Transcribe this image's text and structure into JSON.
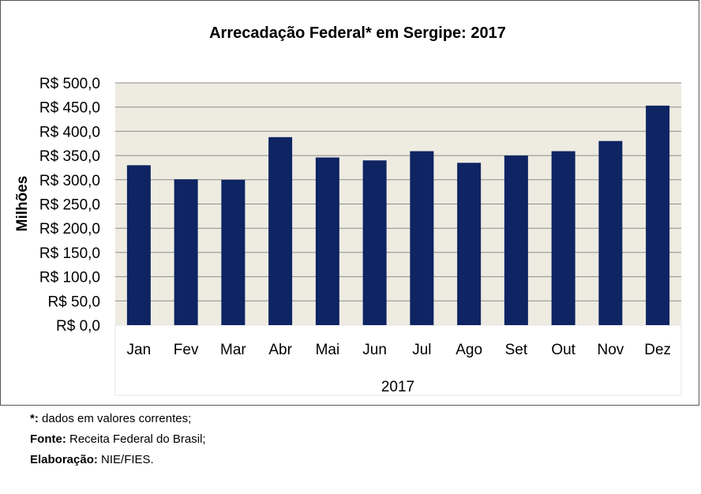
{
  "chart_data": {
    "type": "bar",
    "title": "Arrecadação Federal* em Sergipe: 2017",
    "ylabel": "Milhões",
    "xlabel": "2017",
    "categories": [
      "Jan",
      "Fev",
      "Mar",
      "Abr",
      "Mai",
      "Jun",
      "Jul",
      "Ago",
      "Set",
      "Out",
      "Nov",
      "Dez"
    ],
    "values": [
      330,
      301,
      300,
      388,
      346,
      340,
      359,
      335,
      350,
      359,
      380,
      453
    ],
    "ylim": [
      0,
      500
    ],
    "yticks": [
      0,
      50,
      100,
      150,
      200,
      250,
      300,
      350,
      400,
      450,
      500
    ],
    "ytick_labels": [
      "R$ 0,0",
      "R$ 50,0",
      "R$ 100,0",
      "R$ 150,0",
      "R$ 200,0",
      "R$ 250,0",
      "R$ 300,0",
      "R$ 350,0",
      "R$ 400,0",
      "R$ 450,0",
      "R$ 500,0"
    ],
    "grid": true,
    "colors": {
      "bar": "#0e2463",
      "plot_bg": "#eeece1",
      "grid": "#8c8c8c"
    }
  },
  "notes": {
    "n1_label": "*:",
    "n1_text": " dados em valores correntes;",
    "n2_label": "Fonte:",
    "n2_text": " Receita Federal do Brasil;",
    "n3_label": "Elaboração:",
    "n3_text": " NIE/FIES."
  }
}
